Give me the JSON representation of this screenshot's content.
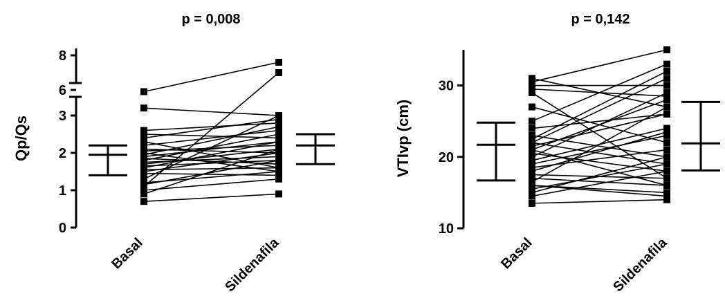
{
  "chart_data": [
    {
      "type": "line",
      "title": "p = 0,008",
      "ylabel": "Qp/Qs",
      "categories": [
        "Basal",
        "Sildenafila"
      ],
      "ylim_lower": [
        0,
        3.5
      ],
      "ylim_upper": [
        5,
        8
      ],
      "yticks_lower": [
        "0",
        "1",
        "2",
        "3"
      ],
      "yticks_upper": [
        "6",
        "8"
      ],
      "axis_break": true,
      "pairs": [
        [
          5.9,
          7.6
        ],
        [
          3.2,
          3.0
        ],
        [
          0.7,
          0.9
        ],
        [
          1.1,
          7.0
        ],
        [
          2.6,
          2.8
        ],
        [
          2.5,
          2.4
        ],
        [
          2.4,
          2.9
        ],
        [
          2.3,
          1.6
        ],
        [
          2.2,
          2.6
        ],
        [
          2.1,
          2.0
        ],
        [
          2.05,
          2.2
        ],
        [
          2.0,
          1.5
        ],
        [
          1.95,
          2.7
        ],
        [
          1.9,
          2.3
        ],
        [
          1.85,
          1.7
        ],
        [
          1.8,
          2.5
        ],
        [
          1.75,
          1.9
        ],
        [
          1.7,
          2.1
        ],
        [
          1.65,
          1.8
        ],
        [
          1.6,
          2.3
        ],
        [
          1.55,
          1.6
        ],
        [
          1.5,
          2.0
        ],
        [
          1.45,
          1.4
        ],
        [
          1.3,
          3.0
        ],
        [
          1.2,
          1.5
        ],
        [
          1.0,
          1.3
        ],
        [
          0.9,
          2.1
        ],
        [
          1.15,
          1.8
        ]
      ],
      "summary": [
        {
          "category": "Basal",
          "low": 1.4,
          "mid": 1.95,
          "high": 2.2
        },
        {
          "category": "Sildenafila",
          "low": 1.7,
          "mid": 2.2,
          "high": 2.5
        }
      ]
    },
    {
      "type": "line",
      "title": "p = 0,142",
      "ylabel": "VTIvp (cm)",
      "categories": [
        "Basal",
        "Sildenafila"
      ],
      "ylim": [
        10,
        35
      ],
      "yticks": [
        "10",
        "20",
        "30"
      ],
      "pairs": [
        [
          31,
          27
        ],
        [
          30.5,
          35
        ],
        [
          30,
          30
        ],
        [
          29.5,
          28.5
        ],
        [
          29,
          17
        ],
        [
          27,
          22
        ],
        [
          25,
          33
        ],
        [
          24,
          26
        ],
        [
          23,
          20
        ],
        [
          22.5,
          32
        ],
        [
          22,
          19
        ],
        [
          21.5,
          26
        ],
        [
          21,
          28
        ],
        [
          20.5,
          18
        ],
        [
          20,
          29
        ],
        [
          19.5,
          24
        ],
        [
          19,
          23
        ],
        [
          18.5,
          21
        ],
        [
          17.5,
          17
        ],
        [
          17,
          16
        ],
        [
          16.5,
          27
        ],
        [
          16,
          15
        ],
        [
          15.5,
          19
        ],
        [
          15,
          20
        ],
        [
          14.5,
          18
        ],
        [
          13.5,
          14
        ],
        [
          22,
          31
        ],
        [
          18,
          23.5
        ],
        [
          16,
          14.5
        ],
        [
          21,
          16
        ]
      ],
      "summary": [
        {
          "category": "Basal",
          "low": 16.7,
          "mid": 21.7,
          "high": 24.8
        },
        {
          "category": "Sildenafila",
          "low": 18.1,
          "mid": 21.9,
          "high": 27.7
        }
      ]
    }
  ]
}
